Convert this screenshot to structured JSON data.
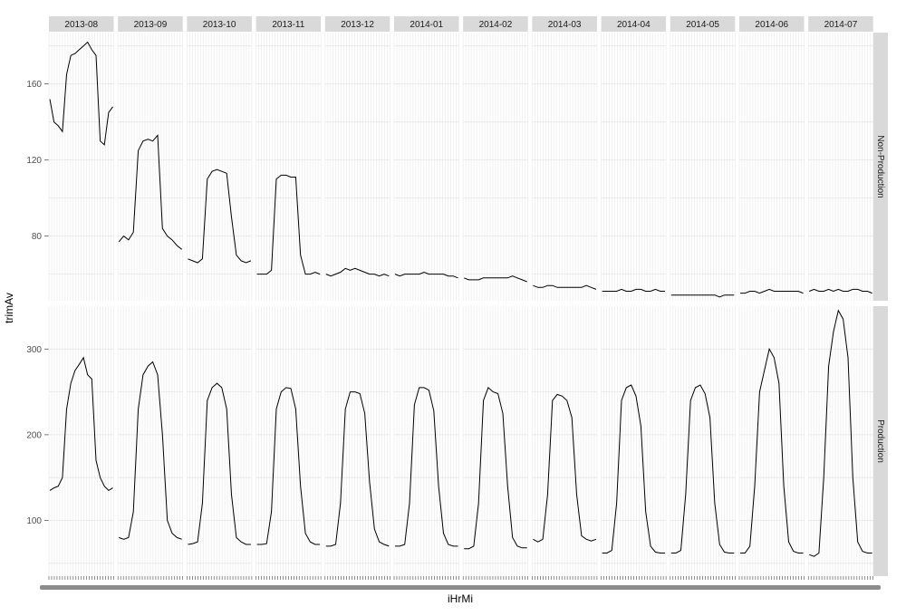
{
  "chart_data": {
    "type": "line",
    "xlabel": "iHrMi",
    "ylabel": "trimAv",
    "columns": [
      "2013-08",
      "2013-09",
      "2013-10",
      "2013-11",
      "2013-12",
      "2014-01",
      "2014-02",
      "2014-03",
      "2014-04",
      "2014-05",
      "2014-06",
      "2014-07"
    ],
    "rows": [
      "Non-Production",
      "Production"
    ],
    "grid": true,
    "panels": [
      {
        "row": "Non-Production",
        "ylim": [
          46,
          187
        ],
        "yticks": [
          80,
          120,
          160
        ],
        "series": [
          {
            "column": "2013-08",
            "y": [
              152,
              140,
              138,
              135,
              165,
              175,
              176,
              178,
              180,
              182,
              178,
              175,
              130,
              128,
              145,
              148
            ]
          },
          {
            "column": "2013-09",
            "y": [
              77,
              80,
              78,
              82,
              125,
              130,
              131,
              130,
              133,
              84,
              80,
              78,
              75,
              73
            ]
          },
          {
            "column": "2013-10",
            "y": [
              68,
              67,
              66,
              68,
              110,
              114,
              115,
              114,
              113,
              90,
              70,
              67,
              66,
              67
            ]
          },
          {
            "column": "2013-11",
            "y": [
              60,
              60,
              60,
              62,
              110,
              112,
              112,
              111,
              111,
              70,
              60,
              60,
              61,
              60
            ]
          },
          {
            "column": "2013-12",
            "y": [
              60,
              59,
              60,
              61,
              63,
              62,
              63,
              62,
              61,
              60,
              60,
              59,
              60,
              59
            ]
          },
          {
            "column": "2014-01",
            "y": [
              60,
              59,
              60,
              60,
              60,
              60,
              61,
              60,
              60,
              60,
              60,
              59,
              59,
              58
            ]
          },
          {
            "column": "2014-02",
            "y": [
              58,
              57,
              57,
              57,
              58,
              58,
              58,
              58,
              58,
              58,
              59,
              58,
              57,
              56
            ]
          },
          {
            "column": "2014-03",
            "y": [
              54,
              53,
              53,
              54,
              54,
              53,
              53,
              53,
              53,
              53,
              53,
              54,
              53,
              52
            ]
          },
          {
            "column": "2014-04",
            "y": [
              51,
              51,
              51,
              51,
              52,
              51,
              51,
              52,
              52,
              51,
              51,
              52,
              51,
              51
            ]
          },
          {
            "column": "2014-05",
            "y": [
              49,
              49,
              49,
              49,
              49,
              49,
              49,
              49,
              49,
              49,
              48,
              49,
              49,
              49
            ]
          },
          {
            "column": "2014-06",
            "y": [
              50,
              50,
              51,
              51,
              50,
              51,
              52,
              51,
              51,
              51,
              51,
              51,
              51,
              50
            ]
          },
          {
            "column": "2014-07",
            "y": [
              51,
              52,
              51,
              51,
              52,
              51,
              52,
              51,
              51,
              52,
              52,
              51,
              51,
              50
            ]
          }
        ]
      },
      {
        "row": "Production",
        "ylim": [
          35,
          350
        ],
        "yticks": [
          100,
          200,
          300
        ],
        "series": [
          {
            "column": "2013-08",
            "y": [
              135,
              138,
              140,
              150,
              230,
              260,
              275,
              282,
              290,
              270,
              265,
              170,
              150,
              140,
              135,
              138
            ]
          },
          {
            "column": "2013-09",
            "y": [
              80,
              78,
              80,
              110,
              230,
              270,
              280,
              285,
              270,
              200,
              100,
              85,
              80,
              78
            ]
          },
          {
            "column": "2013-10",
            "y": [
              72,
              73,
              75,
              120,
              240,
              255,
              260,
              255,
              230,
              130,
              80,
              75,
              72,
              72
            ]
          },
          {
            "column": "2013-11",
            "y": [
              72,
              72,
              73,
              110,
              230,
              250,
              255,
              254,
              230,
              140,
              85,
              75,
              72,
              72
            ]
          },
          {
            "column": "2013-12",
            "y": [
              70,
              70,
              72,
              120,
              230,
              250,
              250,
              248,
              225,
              145,
              90,
              75,
              72,
              70
            ]
          },
          {
            "column": "2014-01",
            "y": [
              70,
              70,
              72,
              120,
              235,
              255,
              255,
              252,
              228,
              140,
              85,
              72,
              70,
              70
            ]
          },
          {
            "column": "2014-02",
            "y": [
              67,
              67,
              70,
              120,
              240,
              255,
              250,
              248,
              225,
              140,
              80,
              70,
              68,
              68
            ]
          },
          {
            "column": "2014-03",
            "y": [
              78,
              75,
              78,
              130,
              240,
              247,
              245,
              240,
              220,
              130,
              82,
              78,
              76,
              78
            ]
          },
          {
            "column": "2014-04",
            "y": [
              62,
              62,
              65,
              120,
              240,
              255,
              258,
              245,
              210,
              110,
              70,
              63,
              62,
              62
            ]
          },
          {
            "column": "2014-05",
            "y": [
              62,
              62,
              65,
              130,
              240,
              255,
              258,
              248,
              220,
              120,
              72,
              63,
              62,
              62
            ]
          },
          {
            "column": "2014-06",
            "y": [
              62,
              62,
              70,
              140,
              250,
              275,
              300,
              290,
              260,
              140,
              75,
              64,
              62,
              62
            ]
          },
          {
            "column": "2014-07",
            "y": [
              60,
              58,
              62,
              150,
              280,
              320,
              345,
              335,
              290,
              150,
              75,
              64,
              62,
              62
            ]
          }
        ]
      }
    ]
  }
}
